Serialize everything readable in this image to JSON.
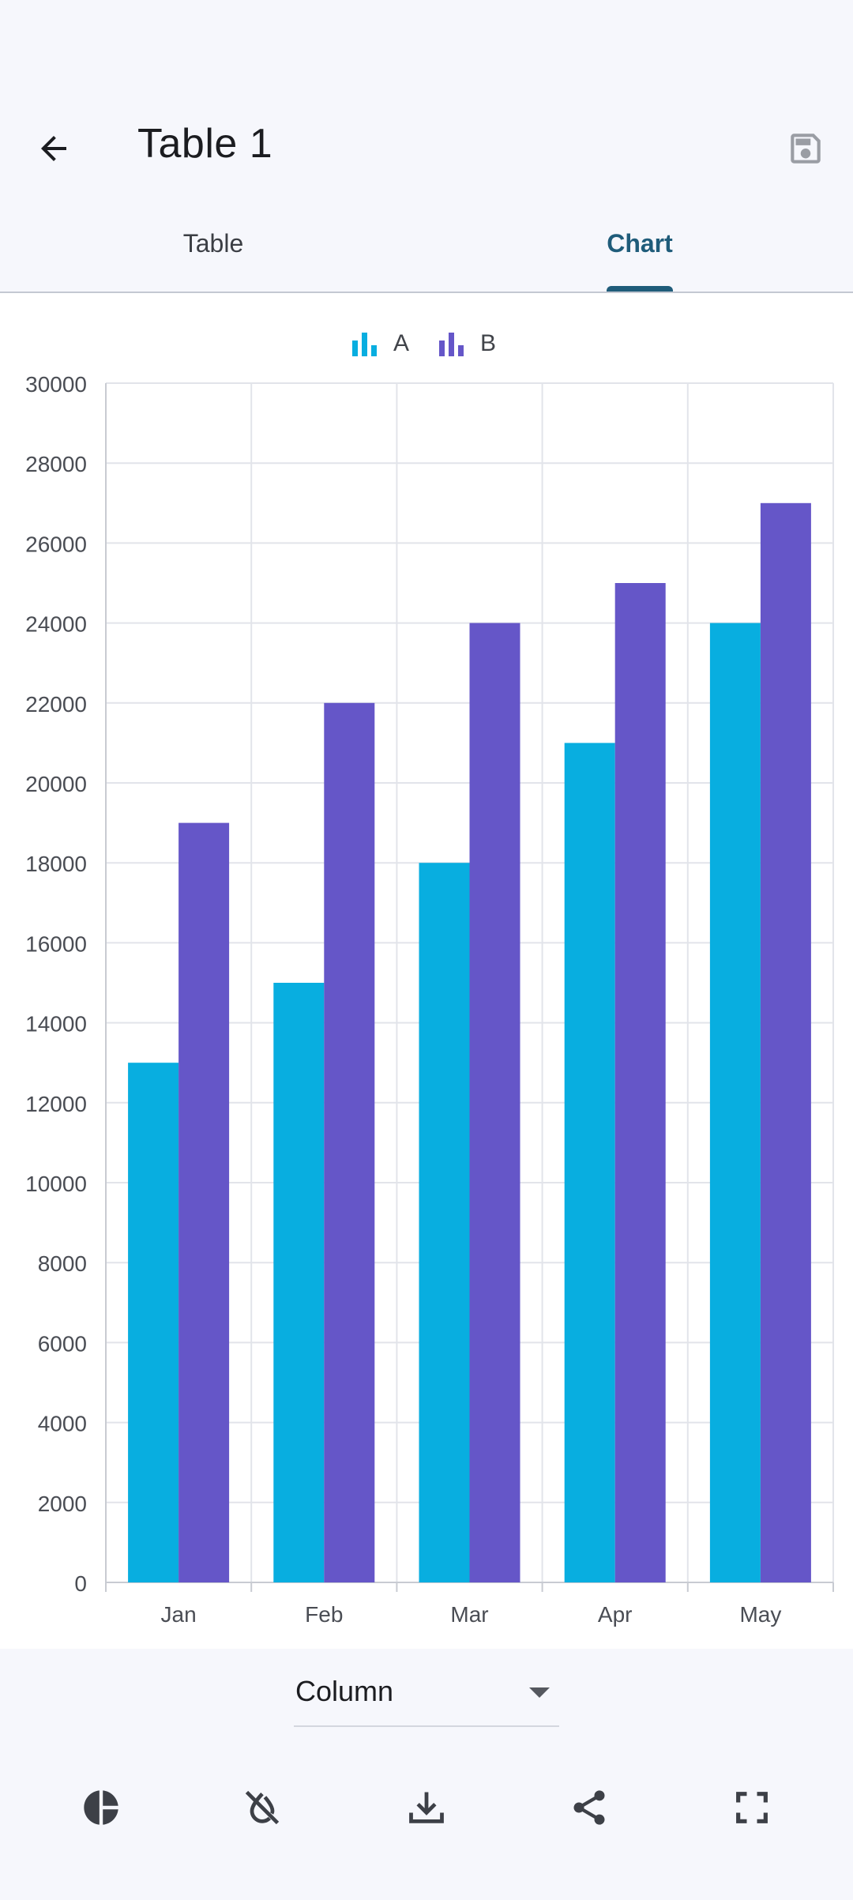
{
  "header": {
    "title": "Table 1",
    "back_icon": "arrow-back-icon",
    "save_icon": "save-icon"
  },
  "tabs": [
    {
      "label": "Table",
      "selected": false
    },
    {
      "label": "Chart",
      "selected": true
    }
  ],
  "colors": {
    "series_a": "#08aee0",
    "series_b": "#6556c8",
    "accent": "#1f5c7a",
    "grid": "#e2e4ea"
  },
  "chart_data": {
    "type": "bar",
    "categories": [
      "Jan",
      "Feb",
      "Mar",
      "Apr",
      "May"
    ],
    "series": [
      {
        "name": "A",
        "values": [
          13000,
          15000,
          18000,
          21000,
          24000
        ]
      },
      {
        "name": "B",
        "values": [
          19000,
          22000,
          24000,
          25000,
          27000
        ]
      }
    ],
    "ylim": [
      0,
      30000
    ],
    "yticks": [
      "0",
      "2000",
      "4000",
      "6000",
      "8000",
      "10000",
      "12000",
      "14000",
      "16000",
      "18000",
      "20000",
      "22000",
      "24000",
      "26000",
      "28000",
      "30000"
    ],
    "grid": true,
    "legend": "top-center"
  },
  "chart_type_select": {
    "value": "Column"
  },
  "toolbar": [
    {
      "icon": "pie-chart-icon"
    },
    {
      "icon": "hide-labels-icon"
    },
    {
      "icon": "download-icon"
    },
    {
      "icon": "share-icon"
    },
    {
      "icon": "fullscreen-icon"
    }
  ]
}
